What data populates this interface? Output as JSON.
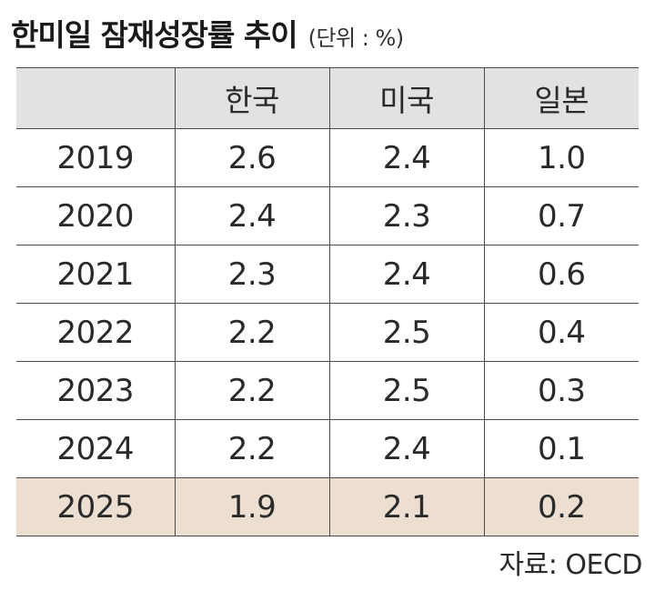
{
  "header": {
    "title": "한미일 잠재성장률 추이",
    "unit_note": "(단위 : %)"
  },
  "table": {
    "columns": [
      "",
      "한국",
      "미국",
      "일본"
    ],
    "rows": [
      {
        "year": "2019",
        "korea": "2.6",
        "usa": "2.4",
        "japan": "1.0"
      },
      {
        "year": "2020",
        "korea": "2.4",
        "usa": "2.3",
        "japan": "0.7"
      },
      {
        "year": "2021",
        "korea": "2.3",
        "usa": "2.4",
        "japan": "0.6"
      },
      {
        "year": "2022",
        "korea": "2.2",
        "usa": "2.5",
        "japan": "0.4"
      },
      {
        "year": "2023",
        "korea": "2.2",
        "usa": "2.5",
        "japan": "0.3"
      },
      {
        "year": "2024",
        "korea": "2.2",
        "usa": "2.4",
        "japan": "0.1"
      },
      {
        "year": "2025",
        "korea": "1.9",
        "usa": "2.1",
        "japan": "0.2"
      }
    ]
  },
  "footer": {
    "source": "자료: OECD"
  },
  "colors": {
    "header_bg": "#e2e2e2",
    "highlight_row_bg": "#ecdfd2",
    "border": "#4a4a4a"
  },
  "chart_data": {
    "type": "table",
    "title": "한미일 잠재성장률 추이",
    "unit": "(단위 : %)",
    "categories": [
      "2019",
      "2020",
      "2021",
      "2022",
      "2023",
      "2024",
      "2025"
    ],
    "series": [
      {
        "name": "한국",
        "values": [
          2.6,
          2.4,
          2.3,
          2.2,
          2.2,
          2.2,
          1.9
        ]
      },
      {
        "name": "미국",
        "values": [
          2.4,
          2.3,
          2.4,
          2.5,
          2.5,
          2.4,
          2.1
        ]
      },
      {
        "name": "일본",
        "values": [
          1.0,
          0.7,
          0.6,
          0.4,
          0.3,
          0.1,
          0.2
        ]
      }
    ],
    "highlighted_category": "2025",
    "source": "자료: OECD"
  }
}
